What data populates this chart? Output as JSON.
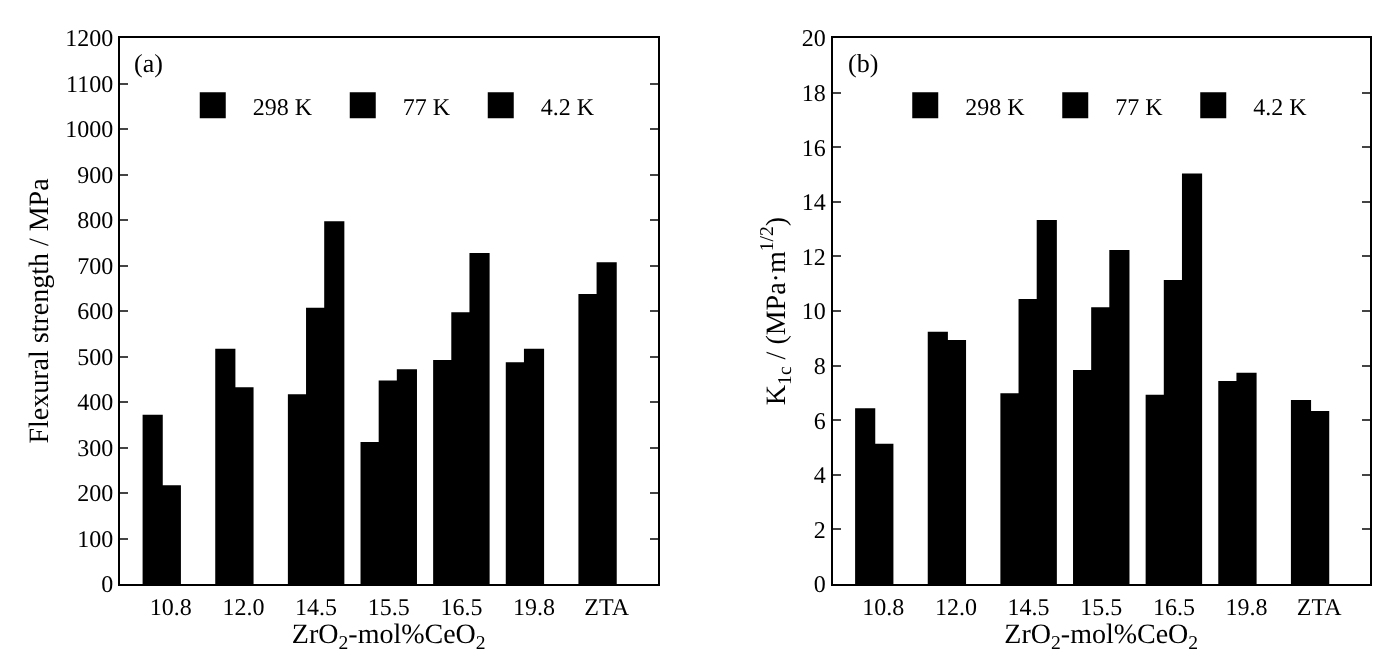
{
  "chart_data": [
    {
      "type": "bar",
      "annotations": [
        "(a)"
      ],
      "xlabel": "ZrO$_{2}$-mol%CeO$_{2}$",
      "ylabel": "Flexural strength / MPa",
      "categories": [
        "10.8",
        "12.0",
        "14.5",
        "15.5",
        "16.5",
        "19.8",
        "ZTA"
      ],
      "series": [
        {
          "name": "298 K",
          "color": "#000000",
          "values": [
            370,
            515,
            415,
            310,
            490,
            485,
            635
          ]
        },
        {
          "name": "77 K",
          "color": "#000000",
          "values": [
            215,
            430,
            605,
            445,
            595,
            515,
            705
          ]
        },
        {
          "name": "4.2 K",
          "color": "#000000",
          "values": [
            null,
            null,
            795,
            470,
            725,
            null,
            null
          ]
        }
      ],
      "ylim": [
        0,
        1200
      ],
      "yticks": [
        0,
        100,
        200,
        300,
        400,
        500,
        600,
        700,
        800,
        900,
        1000,
        1100,
        1200
      ],
      "legend": "top"
    },
    {
      "type": "bar",
      "annotations": [
        "(b)"
      ],
      "xlabel": "ZrO$_{2}$-mol%CeO$_{2}$",
      "ylabel": "K$_{1c}$ / (MPa·m$^{1/2}$)",
      "categories": [
        "10.8",
        "12.0",
        "14.5",
        "15.5",
        "16.5",
        "19.8",
        "ZTA"
      ],
      "series": [
        {
          "name": "298 K",
          "color": "#000000",
          "values": [
            6.4,
            9.2,
            6.95,
            7.8,
            6.9,
            7.4,
            6.7
          ]
        },
        {
          "name": "77 K",
          "color": "#000000",
          "values": [
            5.1,
            8.9,
            10.4,
            10.1,
            11.1,
            7.7,
            6.3
          ]
        },
        {
          "name": "4.2 K",
          "color": "#000000",
          "values": [
            null,
            null,
            13.3,
            12.2,
            15.0,
            null,
            null
          ]
        }
      ],
      "ylim": [
        0,
        20
      ],
      "yticks": [
        0,
        2,
        4,
        6,
        8,
        10,
        12,
        14,
        16,
        18,
        20
      ],
      "legend": "top"
    }
  ]
}
